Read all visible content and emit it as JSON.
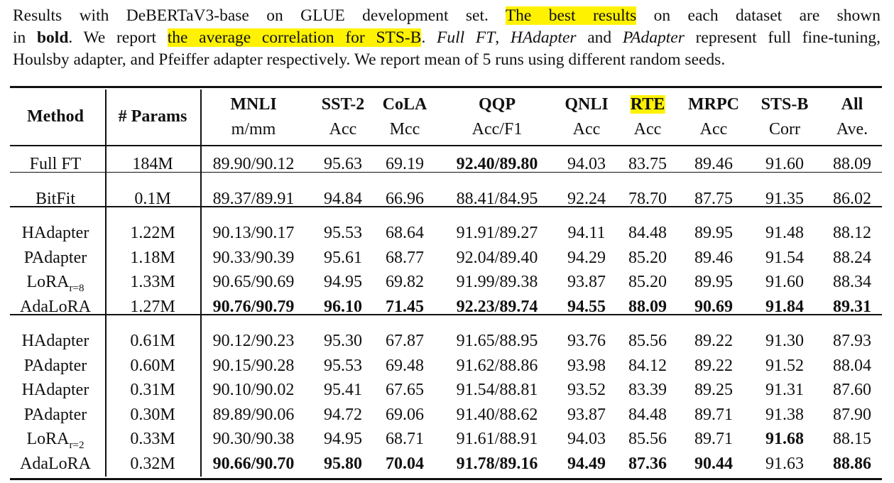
{
  "caption": {
    "lines": [
      [
        {
          "text": "Results with DeBERTaV3-base on GLUE development set. "
        },
        {
          "text": "The best results",
          "style": "highlight"
        },
        {
          "text": " on each dataset are shown"
        }
      ],
      [
        {
          "text": "in "
        },
        {
          "text": "bold",
          "style": "bold"
        },
        {
          "text": ". We report "
        },
        {
          "text": "the average correlation for STS-B",
          "style": "highlight"
        },
        {
          "text": ". "
        },
        {
          "text": "Full FT",
          "style": "italic"
        },
        {
          "text": ", "
        },
        {
          "text": "HAdapter",
          "style": "italic"
        },
        {
          "text": " and "
        },
        {
          "text": "PAdapter",
          "style": "italic"
        },
        {
          "text": " represent full fine-tuning,"
        }
      ],
      [
        {
          "text": "Houlsby adapter, and Pfeiffer adapter respectively. We report mean of 5 runs using different random seeds."
        }
      ]
    ]
  },
  "table": {
    "columns": [
      {
        "name": "Method"
      },
      {
        "name": "# Params"
      },
      {
        "name": "MNLI",
        "metric": "m/mm"
      },
      {
        "name": "SST-2",
        "metric": "Acc"
      },
      {
        "name": "CoLA",
        "metric": "Mcc"
      },
      {
        "name": "QQP",
        "metric": "Acc/F1"
      },
      {
        "name": "QNLI",
        "metric": "Acc"
      },
      {
        "name": "RTE",
        "metric": "Acc",
        "highlight": true
      },
      {
        "name": "MRPC",
        "metric": "Acc"
      },
      {
        "name": "STS-B",
        "metric": "Corr"
      },
      {
        "name": "All",
        "metric": "Ave."
      }
    ],
    "groups": [
      [
        [
          "Full FT",
          "184M",
          "89.90/90.12",
          "95.63",
          "69.19",
          {
            "text": "92.40/89.80",
            "bold": true
          },
          "94.03",
          "83.75",
          "89.46",
          "91.60",
          "88.09"
        ]
      ],
      [
        [
          "BitFit",
          "0.1M",
          "89.37/89.91",
          "94.84",
          "66.96",
          "88.41/84.95",
          "92.24",
          "78.70",
          "87.75",
          "91.35",
          "86.02"
        ]
      ],
      [
        [
          "HAdapter",
          "1.22M",
          "90.13/90.17",
          "95.53",
          "68.64",
          "91.91/89.27",
          "94.11",
          "84.48",
          "89.95",
          "91.48",
          "88.12"
        ],
        [
          "PAdapter",
          "1.18M",
          "90.33/90.39",
          "95.61",
          "68.77",
          "92.04/89.40",
          "94.29",
          "85.20",
          "89.46",
          "91.54",
          "88.24"
        ],
        [
          {
            "text": "LoRA",
            "sub": "r=8"
          },
          "1.33M",
          "90.65/90.69",
          "94.95",
          "69.82",
          "91.99/89.38",
          "93.87",
          "85.20",
          "89.95",
          "91.60",
          "88.34"
        ],
        [
          "AdaLoRA",
          "1.27M",
          {
            "text": "90.76/90.79",
            "bold": true
          },
          {
            "text": "96.10",
            "bold": true
          },
          {
            "text": "71.45",
            "bold": true
          },
          {
            "text": "92.23/89.74",
            "bold": true
          },
          {
            "text": "94.55",
            "bold": true
          },
          {
            "text": "88.09",
            "bold": true
          },
          {
            "text": "90.69",
            "bold": true
          },
          {
            "text": "91.84",
            "bold": true
          },
          {
            "text": "89.31",
            "bold": true
          }
        ]
      ],
      [
        [
          "HAdapter",
          "0.61M",
          "90.12/90.23",
          "95.30",
          "67.87",
          "91.65/88.95",
          "93.76",
          "85.56",
          "89.22",
          "91.30",
          "87.93"
        ],
        [
          "PAdapter",
          "0.60M",
          "90.15/90.28",
          "95.53",
          "69.48",
          "91.62/88.86",
          "93.98",
          "84.12",
          "89.22",
          "91.52",
          "88.04"
        ],
        [
          "HAdapter",
          "0.31M",
          "90.10/90.02",
          "95.41",
          "67.65",
          "91.54/88.81",
          "93.52",
          "83.39",
          "89.25",
          "91.31",
          "87.60"
        ],
        [
          "PAdapter",
          "0.30M",
          "89.89/90.06",
          "94.72",
          "69.06",
          "91.40/88.62",
          "93.87",
          "84.48",
          "89.71",
          "91.38",
          "87.90"
        ],
        [
          {
            "text": "LoRA",
            "sub": "r=2"
          },
          "0.33M",
          "90.30/90.38",
          "94.95",
          "68.71",
          "91.61/88.91",
          "94.03",
          "85.56",
          "89.71",
          {
            "text": "91.68",
            "bold": true
          },
          "88.15"
        ],
        [
          "AdaLoRA",
          "0.32M",
          {
            "text": "90.66/90.70",
            "bold": true
          },
          {
            "text": "95.80",
            "bold": true
          },
          {
            "text": "70.04",
            "bold": true
          },
          {
            "text": "91.78/89.16",
            "bold": true
          },
          {
            "text": "94.49",
            "bold": true
          },
          {
            "text": "87.36",
            "bold": true
          },
          {
            "text": "90.44",
            "bold": true
          },
          "91.63",
          {
            "text": "88.86",
            "bold": true
          }
        ]
      ]
    ]
  }
}
